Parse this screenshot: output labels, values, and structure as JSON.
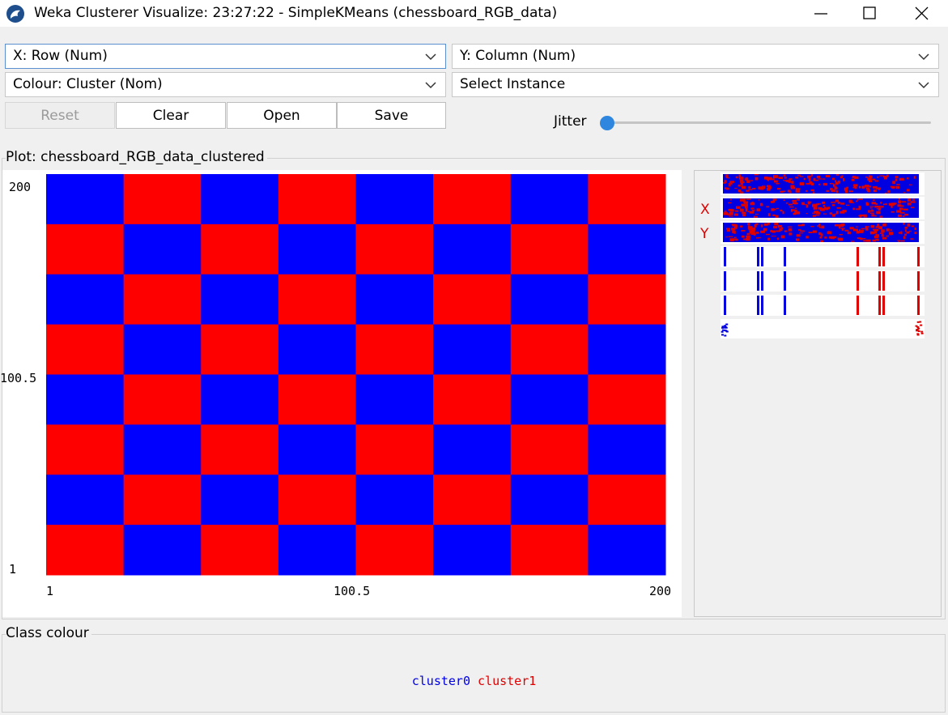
{
  "window": {
    "title": "Weka Clusterer Visualize: 23:27:22 - SimpleKMeans (chessboard_RGB_data)",
    "app_icon": "weka-bird-icon",
    "controls": [
      "minimize-icon",
      "maximize-icon",
      "close-icon"
    ]
  },
  "axes": {
    "x_select": "X: Row (Num)",
    "y_select": "Y: Column (Num)",
    "colour_select": "Colour: Cluster (Nom)",
    "instance_select": "Select Instance"
  },
  "toolbar": {
    "reset_label": "Reset",
    "clear_label": "Clear",
    "open_label": "Open",
    "save_label": "Save"
  },
  "jitter": {
    "label": "Jitter",
    "value": 0
  },
  "plot": {
    "title": "Plot: chessboard_RGB_data_clustered",
    "y_ticks": [
      "200",
      "100.5",
      "1"
    ],
    "x_ticks": [
      "1",
      "100.5",
      "200"
    ]
  },
  "attribute_bars": {
    "labels": [
      "X",
      "Y"
    ]
  },
  "class_colour": {
    "title": "Class colour",
    "clusters": [
      {
        "name": "cluster0",
        "color": "#0000e0"
      },
      {
        "name": "cluster1",
        "color": "#e00000"
      }
    ]
  },
  "chart_data": {
    "type": "scatter",
    "title": "Plot: chessboard_RGB_data_clustered",
    "xlabel": "Row",
    "ylabel": "Column",
    "xlim": [
      1,
      200
    ],
    "ylim": [
      1,
      200
    ],
    "x_ticks": [
      1,
      100.5,
      200
    ],
    "y_ticks": [
      1,
      100.5,
      200
    ],
    "grid": false,
    "colors": {
      "cluster0": "#0000ff",
      "cluster1": "#ff0000"
    },
    "pattern": "8x8 chessboard of points; cell (i,j) belongs to cluster0 when (i+j) is even, counting from the top-left cell",
    "cells": 8
  }
}
